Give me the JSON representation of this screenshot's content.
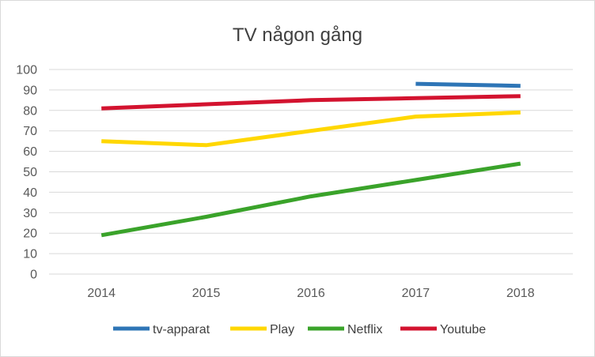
{
  "chart_data": {
    "type": "line",
    "title": "TV någon gång",
    "xlabel": "",
    "ylabel": "",
    "categories": [
      "2014",
      "2015",
      "2016",
      "2017",
      "2018"
    ],
    "ylim": [
      0,
      100
    ],
    "yticks": [
      0,
      10,
      20,
      30,
      40,
      50,
      60,
      70,
      80,
      90,
      100
    ],
    "grid": true,
    "legend": "bottom",
    "series": [
      {
        "name": "tv-apparat",
        "color": "#2e75b6",
        "values": [
          null,
          null,
          null,
          93,
          92
        ]
      },
      {
        "name": "Play",
        "color": "#ffd700",
        "values": [
          65,
          63,
          70,
          77,
          79
        ]
      },
      {
        "name": "Netflix",
        "color": "#3aa32a",
        "values": [
          19,
          28,
          38,
          46,
          54
        ]
      },
      {
        "name": "Youtube",
        "color": "#d3132f",
        "values": [
          81,
          83,
          85,
          86,
          87
        ]
      }
    ]
  }
}
